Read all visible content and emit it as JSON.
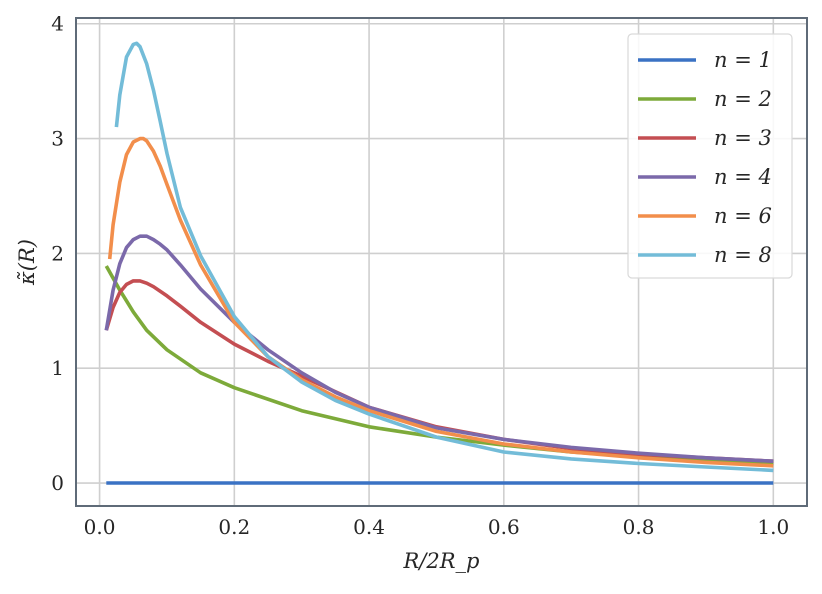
{
  "chart_data": {
    "type": "line",
    "title": "",
    "xlabel": "R/2R_p",
    "ylabel": "κ̃(R)",
    "xlim": [
      -0.035,
      1.05
    ],
    "ylim": [
      -0.2,
      4.05
    ],
    "xticks": [
      0.0,
      0.2,
      0.4,
      0.6,
      0.8,
      1.0
    ],
    "xtick_labels": [
      "0.0",
      "0.2",
      "0.4",
      "0.6",
      "0.8",
      "1.0"
    ],
    "yticks": [
      0,
      1,
      2,
      3,
      4
    ],
    "ytick_labels": [
      "0",
      "1",
      "2",
      "3",
      "4"
    ],
    "grid": true,
    "legend_position": "top-right",
    "series": [
      {
        "name": "n = 1",
        "color": "#3a72c4",
        "x": [
          0.01,
          0.1,
          0.2,
          0.3,
          0.4,
          0.5,
          0.6,
          0.7,
          0.8,
          0.9,
          1.0
        ],
        "y": [
          0,
          0,
          0,
          0,
          0,
          0,
          0,
          0,
          0,
          0,
          0
        ]
      },
      {
        "name": "n = 2",
        "color": "#7daa3a",
        "x": [
          0.01,
          0.03,
          0.05,
          0.07,
          0.1,
          0.15,
          0.2,
          0.3,
          0.4,
          0.5,
          0.6,
          0.7,
          0.8,
          0.9,
          1.0
        ],
        "y": [
          1.89,
          1.68,
          1.49,
          1.33,
          1.16,
          0.96,
          0.83,
          0.63,
          0.49,
          0.4,
          0.33,
          0.27,
          0.23,
          0.2,
          0.17
        ]
      },
      {
        "name": "n = 3",
        "color": "#c44e52",
        "x": [
          0.01,
          0.02,
          0.03,
          0.04,
          0.05,
          0.06,
          0.07,
          0.08,
          0.1,
          0.12,
          0.15,
          0.2,
          0.25,
          0.3,
          0.4,
          0.5,
          0.6,
          0.7,
          0.8,
          0.9,
          1.0
        ],
        "y": [
          1.33,
          1.53,
          1.66,
          1.73,
          1.76,
          1.76,
          1.74,
          1.71,
          1.63,
          1.54,
          1.4,
          1.21,
          1.06,
          0.93,
          0.66,
          0.49,
          0.38,
          0.3,
          0.25,
          0.22,
          0.19
        ]
      },
      {
        "name": "n = 4",
        "color": "#7b69aa",
        "x": [
          0.01,
          0.02,
          0.03,
          0.04,
          0.05,
          0.06,
          0.07,
          0.08,
          0.09,
          0.1,
          0.12,
          0.15,
          0.2,
          0.25,
          0.3,
          0.35,
          0.4,
          0.5,
          0.6,
          0.7,
          0.8,
          0.9,
          1.0
        ],
        "y": [
          1.33,
          1.68,
          1.91,
          2.05,
          2.12,
          2.15,
          2.15,
          2.12,
          2.08,
          2.03,
          1.9,
          1.69,
          1.4,
          1.16,
          0.96,
          0.79,
          0.66,
          0.48,
          0.38,
          0.31,
          0.26,
          0.22,
          0.19
        ]
      },
      {
        "name": "n = 6",
        "color": "#f28e4b",
        "x": [
          0.015,
          0.02,
          0.03,
          0.04,
          0.05,
          0.06,
          0.065,
          0.07,
          0.08,
          0.09,
          0.1,
          0.12,
          0.15,
          0.2,
          0.25,
          0.3,
          0.35,
          0.4,
          0.5,
          0.6,
          0.7,
          0.8,
          0.9,
          1.0
        ],
        "y": [
          1.95,
          2.25,
          2.62,
          2.86,
          2.97,
          3.0,
          3.0,
          2.98,
          2.89,
          2.76,
          2.6,
          2.29,
          1.9,
          1.4,
          1.1,
          0.9,
          0.75,
          0.63,
          0.45,
          0.34,
          0.27,
          0.22,
          0.18,
          0.15
        ]
      },
      {
        "name": "n = 8",
        "color": "#73bcd8",
        "x": [
          0.025,
          0.03,
          0.04,
          0.05,
          0.055,
          0.06,
          0.07,
          0.08,
          0.09,
          0.1,
          0.12,
          0.15,
          0.2,
          0.25,
          0.3,
          0.35,
          0.4,
          0.5,
          0.6,
          0.7,
          0.8,
          0.9,
          1.0
        ],
        "y": [
          3.1,
          3.38,
          3.71,
          3.82,
          3.83,
          3.8,
          3.65,
          3.42,
          3.15,
          2.87,
          2.4,
          1.98,
          1.45,
          1.1,
          0.88,
          0.72,
          0.6,
          0.4,
          0.27,
          0.21,
          0.17,
          0.14,
          0.11
        ]
      }
    ]
  }
}
